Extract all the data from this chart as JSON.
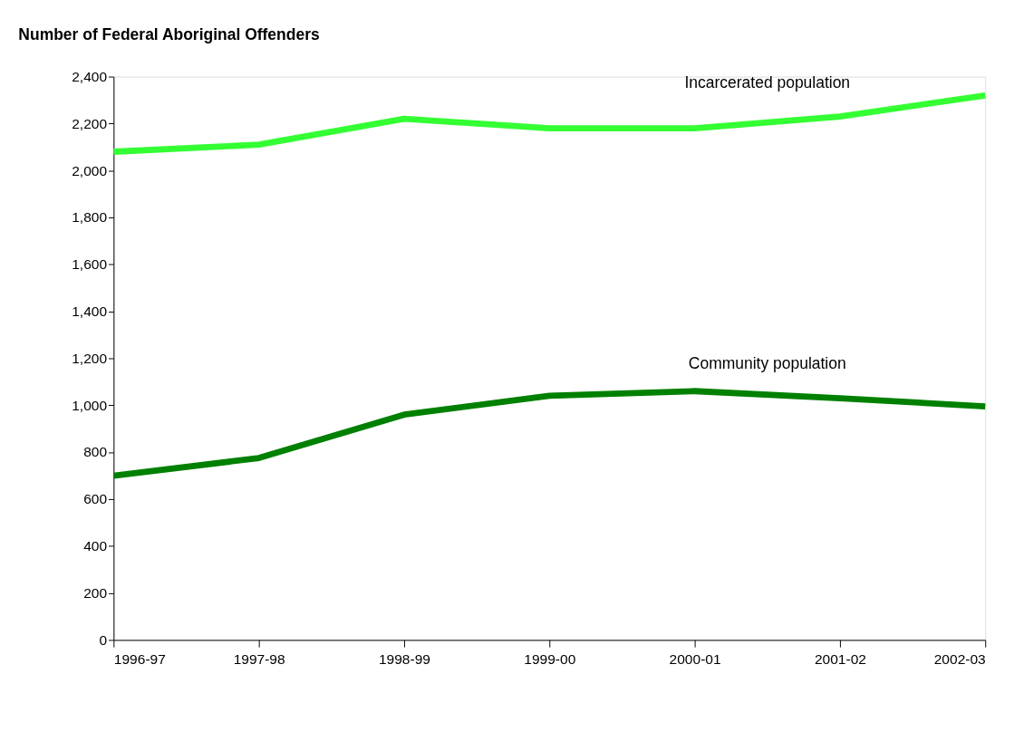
{
  "chart_data": {
    "type": "line",
    "title": "Number of Federal Aboriginal Offenders",
    "categories": [
      "1996-97",
      "1997-98",
      "1998-99",
      "1999-00",
      "2000-01",
      "2001-02",
      "2002-03"
    ],
    "series": [
      {
        "name": "Incarcerated population",
        "color": "#33ff33",
        "values": [
          2080,
          2110,
          2220,
          2180,
          2180,
          2230,
          2320
        ]
      },
      {
        "name": "Community population",
        "color": "#008000",
        "values": [
          700,
          775,
          960,
          1040,
          1060,
          1030,
          995
        ]
      }
    ],
    "ylim": [
      0,
      2400
    ],
    "yticks": [
      0,
      200,
      400,
      600,
      800,
      {
        "value": 1000,
        "label": "1,000"
      },
      {
        "value": 1200,
        "label": "1,200"
      },
      {
        "value": 1400,
        "label": "1,400"
      },
      {
        "value": 1600,
        "label": "1,600"
      },
      {
        "value": 1800,
        "label": "1,800"
      },
      {
        "value": 2000,
        "label": "2,000"
      },
      {
        "value": 2200,
        "label": "2,200"
      },
      {
        "value": 2400,
        "label": "2,400"
      }
    ],
    "grid": false,
    "legend": false,
    "marker": "none",
    "line_style": "solid"
  }
}
